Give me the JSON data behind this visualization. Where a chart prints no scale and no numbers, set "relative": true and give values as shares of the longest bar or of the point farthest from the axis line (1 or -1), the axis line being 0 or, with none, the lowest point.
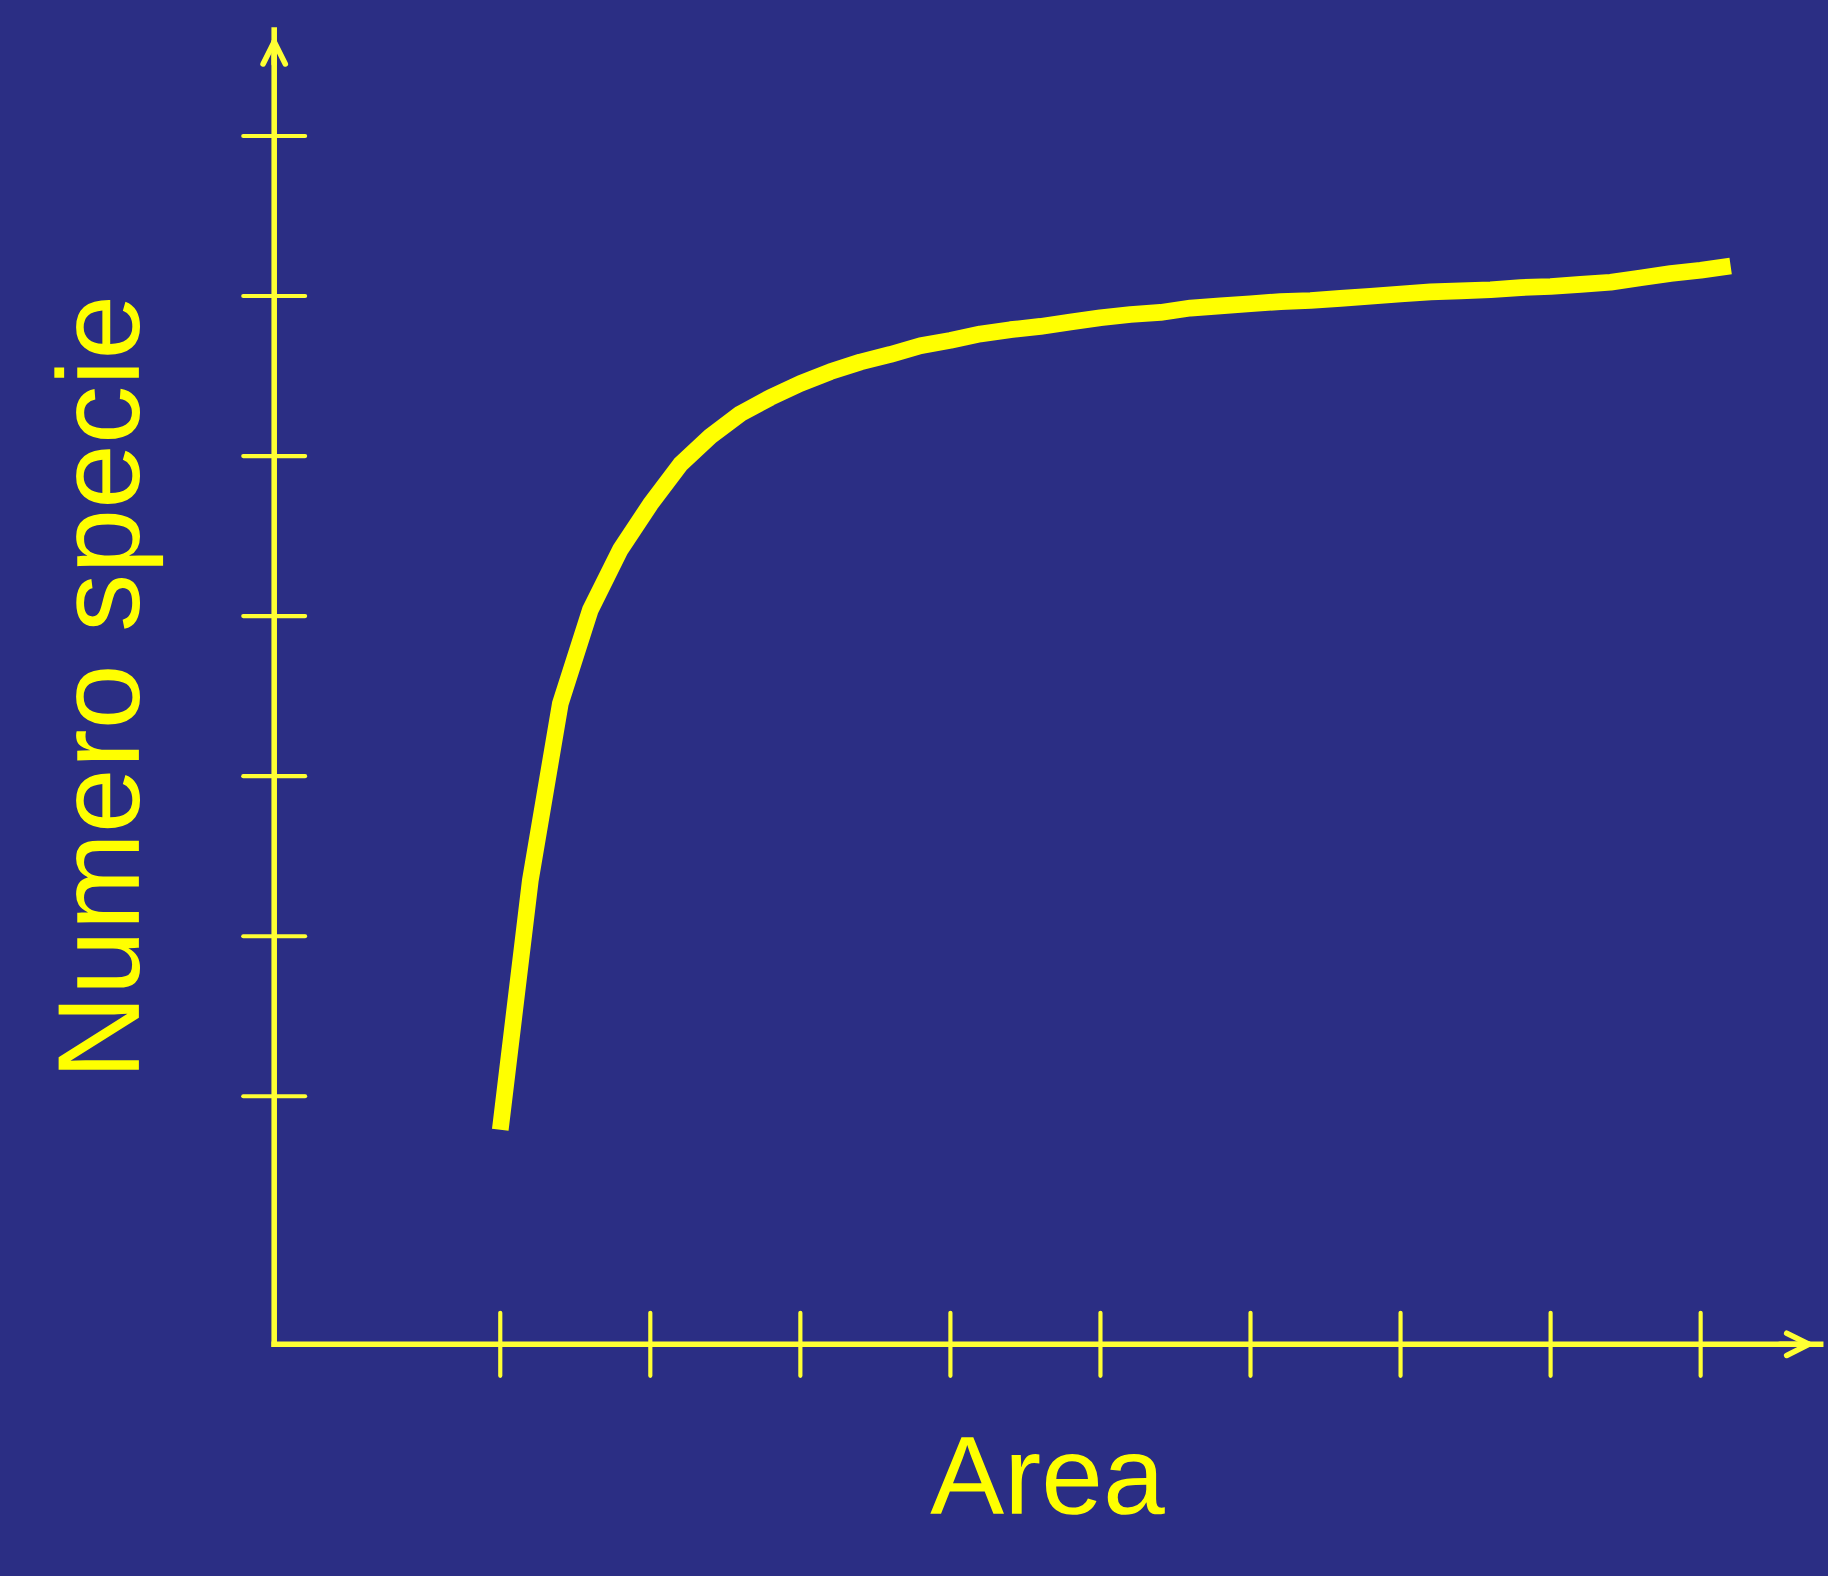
{
  "chart_data": {
    "type": "line",
    "relative": true,
    "xlabel": "Area",
    "ylabel": "Numero specie",
    "legend": false,
    "categories": [
      null,
      null,
      null,
      null,
      null,
      null,
      null,
      null,
      null,
      null,
      null,
      null,
      null,
      null,
      null,
      null,
      null,
      null,
      null,
      null,
      null,
      null,
      null,
      null,
      null,
      null,
      null,
      null,
      null,
      null,
      null,
      null,
      null,
      null,
      null,
      null,
      null,
      null,
      null,
      null,
      null,
      null
    ],
    "series": [
      {
        "color": "#ffff00",
        "values": [
          0.199,
          0.43,
          0.594,
          0.681,
          0.737,
          0.779,
          0.816,
          0.842,
          0.863,
          0.878,
          0.891,
          0.902,
          0.911,
          0.918,
          0.926,
          0.931,
          0.937,
          0.941,
          0.944,
          0.948,
          0.952,
          0.955,
          0.957,
          0.961,
          0.963,
          0.965,
          0.967,
          0.968,
          0.97,
          0.972,
          0.974,
          0.976,
          0.977,
          0.978,
          0.98,
          0.981,
          0.983,
          0.985,
          0.989,
          0.993,
          0.996,
          1.0
        ]
      }
    ]
  }
}
